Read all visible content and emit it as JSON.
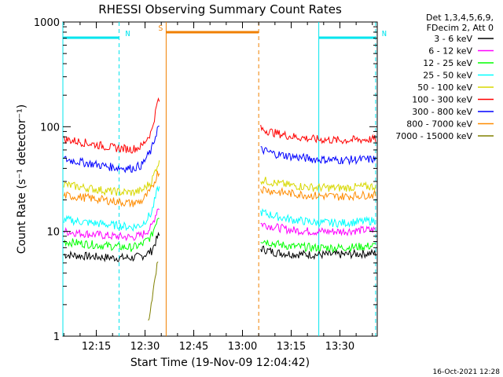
{
  "chart_data": {
    "type": "line",
    "title": "RHESSI Observing Summary Count Rates",
    "xlabel": "Start Time (19-Nov-09 12:04:42)",
    "ylabel": "Count Rate (s⁻¹ detector⁻¹)",
    "y_scale": "log",
    "ylim": [
      1,
      1000
    ],
    "xlim": [
      "12:04:42",
      "13:41:30"
    ],
    "x_ticks": [
      "12:15",
      "12:30",
      "12:45",
      "13:00",
      "13:15",
      "13:30"
    ],
    "y_ticks": [
      "1",
      "10",
      "100",
      "1000"
    ],
    "legend_header": [
      "Det 1,3,4,5,6,9,",
      "FDecim 2, Att 0"
    ],
    "legend_position": "right",
    "footer_date": "16-Oct-2021 12:28",
    "flags": [
      {
        "label": "N",
        "color": "#00e5ee",
        "intervals": [
          [
            "12:04:42",
            "12:22:00"
          ],
          [
            "13:23:30",
            "13:41:00"
          ]
        ]
      },
      {
        "label": "S",
        "color": "#f08000",
        "intervals": [
          [
            "12:36:30",
            "13:05:00"
          ]
        ]
      }
    ],
    "series": [
      {
        "name": "3 - 6 keV",
        "color": "#000000",
        "x": [
          "12:05",
          "12:12",
          "12:20",
          "12:26",
          "12:29",
          "12:32",
          "12:34",
          "13:06",
          "13:10",
          "13:15",
          "13:22",
          "13:30",
          "13:35",
          "13:41"
        ],
        "values": [
          6,
          5.8,
          5.6,
          5.6,
          5.8,
          6.5,
          9,
          6.8,
          6.3,
          6.1,
          6,
          6,
          6.1,
          6.2
        ]
      },
      {
        "name": "6 - 12 keV",
        "color": "#ff00ff",
        "x": [
          "12:05",
          "12:12",
          "12:20",
          "12:26",
          "12:29",
          "12:32",
          "12:34",
          "13:06",
          "13:10",
          "13:15",
          "13:22",
          "13:30",
          "13:35",
          "13:41"
        ],
        "values": [
          10,
          9.5,
          9,
          8.8,
          9.2,
          11,
          17,
          11.8,
          11,
          10.3,
          10,
          10,
          10.2,
          10.4
        ]
      },
      {
        "name": "12 - 25 keV",
        "color": "#00ff00",
        "x": [
          "12:05",
          "12:12",
          "12:20",
          "12:26",
          "12:29",
          "12:32",
          "12:34",
          "13:06",
          "13:10",
          "13:15",
          "13:22",
          "13:30",
          "13:35",
          "13:41"
        ],
        "values": [
          8,
          7.6,
          7.2,
          7,
          7.5,
          9,
          14,
          8.3,
          7.6,
          7.2,
          7,
          7,
          7.1,
          7.3
        ]
      },
      {
        "name": "25 - 50 keV",
        "color": "#00ffff",
        "x": [
          "12:05",
          "12:12",
          "12:20",
          "12:26",
          "12:29",
          "12:32",
          "12:34",
          "13:06",
          "13:10",
          "13:15",
          "13:22",
          "13:30",
          "13:35",
          "13:41"
        ],
        "values": [
          13,
          12.2,
          11.5,
          11,
          11.6,
          15,
          26,
          15.2,
          14,
          13,
          12.2,
          12,
          12.3,
          12.7
        ]
      },
      {
        "name": "50 - 100 keV",
        "color": "#d8d800",
        "x": [
          "12:05",
          "12:12",
          "12:20",
          "12:26",
          "12:29",
          "12:32",
          "12:34",
          "13:06",
          "13:10",
          "13:15",
          "13:22",
          "13:30",
          "13:35",
          "13:41"
        ],
        "values": [
          28,
          26,
          24,
          23.5,
          24.5,
          30,
          45,
          31,
          29,
          27.5,
          26.3,
          26,
          26.5,
          27
        ]
      },
      {
        "name": "100 - 300 keV",
        "color": "#ff0000",
        "x": [
          "12:05",
          "12:12",
          "12:20",
          "12:26",
          "12:29",
          "12:32",
          "12:34",
          "13:06",
          "13:10",
          "13:15",
          "13:22",
          "13:30",
          "13:35",
          "13:41"
        ],
        "values": [
          76,
          70,
          63,
          61,
          65,
          90,
          180,
          95,
          87,
          81,
          76,
          74,
          75,
          76
        ]
      },
      {
        "name": "300 - 800 keV",
        "color": "#0000ff",
        "x": [
          "12:05",
          "12:12",
          "12:20",
          "12:26",
          "12:29",
          "12:32",
          "12:34",
          "13:06",
          "13:10",
          "13:15",
          "13:22",
          "13:30",
          "13:35",
          "13:41"
        ],
        "values": [
          49,
          45,
          41,
          40,
          43,
          60,
          100,
          60,
          55,
          52,
          49,
          48,
          48.5,
          49
        ]
      },
      {
        "name": "800 - 7000 keV",
        "color": "#ff8c00",
        "x": [
          "12:05",
          "12:12",
          "12:20",
          "12:26",
          "12:29",
          "12:32",
          "12:34",
          "13:06",
          "13:10",
          "13:15",
          "13:22",
          "13:30",
          "13:35",
          "13:41"
        ],
        "values": [
          22,
          21,
          19.5,
          18.5,
          19.5,
          25,
          37,
          25.5,
          24,
          23,
          22,
          21.5,
          22,
          22.5
        ]
      },
      {
        "name": "7000 - 15000 keV",
        "color": "#808000",
        "x": [
          "12:31",
          "12:32",
          "12:33",
          "12:34"
        ],
        "values": [
          1.3,
          2.2,
          3.5,
          5.5
        ]
      }
    ]
  }
}
